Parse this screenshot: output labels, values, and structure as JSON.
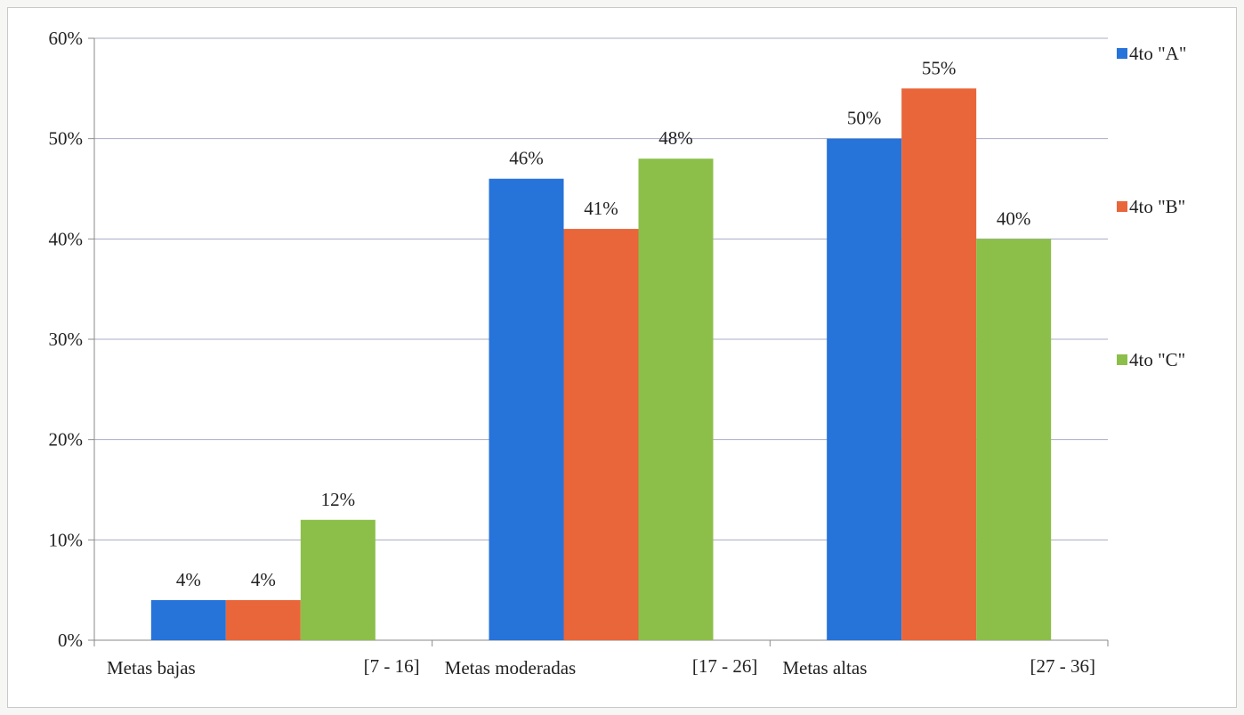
{
  "chart_data": {
    "type": "bar",
    "categories": [
      {
        "name": "Metas bajas",
        "range": "[7 - 16]"
      },
      {
        "name": "Metas moderadas",
        "range": "[17 - 26]"
      },
      {
        "name": "Metas altas",
        "range": "[27 - 36]"
      }
    ],
    "series": [
      {
        "name": "4to \"A\"",
        "color": "#2673d9",
        "values": [
          4,
          46,
          50
        ],
        "labels": [
          "4%",
          "46%",
          "50%"
        ]
      },
      {
        "name": "4to \"B\"",
        "color": "#e8663a",
        "values": [
          4,
          41,
          55
        ],
        "labels": [
          "4%",
          "41%",
          "55%"
        ]
      },
      {
        "name": "4to \"C\"",
        "color": "#8cbf4a",
        "values": [
          12,
          48,
          40
        ],
        "labels": [
          "12%",
          "48%",
          "40%"
        ]
      }
    ],
    "y_ticks": [
      "0%",
      "10%",
      "20%",
      "30%",
      "40%",
      "50%",
      "60%"
    ],
    "ylim": [
      0,
      60
    ],
    "grid": true,
    "legend_position": "right"
  }
}
